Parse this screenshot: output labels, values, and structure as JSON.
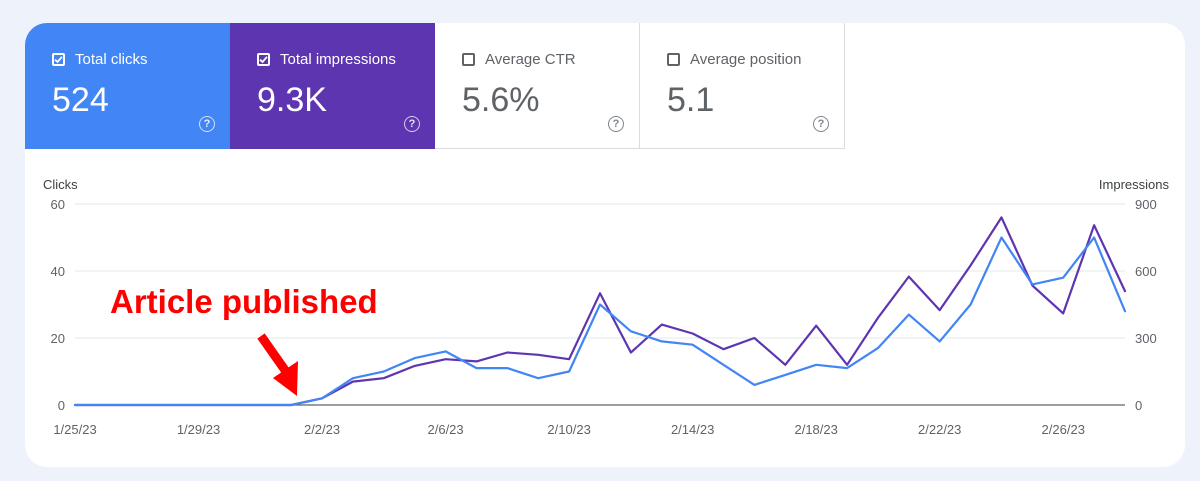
{
  "metrics": [
    {
      "label": "Total clicks",
      "value": "524",
      "checked": true,
      "color": "#4285f4",
      "help_icon": "?"
    },
    {
      "label": "Total impressions",
      "value": "9.3K",
      "checked": true,
      "color": "#5e35b1",
      "help_icon": "?"
    },
    {
      "label": "Average CTR",
      "value": "5.6%",
      "checked": false,
      "color": "#ffffff",
      "help_icon": "?"
    },
    {
      "label": "Average position",
      "value": "5.1",
      "checked": false,
      "color": "#ffffff",
      "help_icon": "?"
    }
  ],
  "annotation": {
    "text": "Article published",
    "color": "#ff0000"
  },
  "chart_data": {
    "type": "line",
    "left_axis": {
      "title": "Clicks",
      "ticks": [
        "0",
        "20",
        "40",
        "60"
      ],
      "range": [
        0,
        60
      ]
    },
    "right_axis": {
      "title": "Impressions",
      "ticks": [
        "0",
        "300",
        "600",
        "900"
      ],
      "range": [
        0,
        900
      ]
    },
    "x_ticks": [
      "1/25/23",
      "1/29/23",
      "2/2/23",
      "2/6/23",
      "2/10/23",
      "2/14/23",
      "2/18/23",
      "2/22/23",
      "2/26/23"
    ],
    "x": [
      "1/25/23",
      "1/26/23",
      "1/27/23",
      "1/28/23",
      "1/29/23",
      "1/30/23",
      "1/31/23",
      "2/1/23",
      "2/2/23",
      "2/3/23",
      "2/4/23",
      "2/5/23",
      "2/6/23",
      "2/7/23",
      "2/8/23",
      "2/9/23",
      "2/10/23",
      "2/11/23",
      "2/12/23",
      "2/13/23",
      "2/14/23",
      "2/15/23",
      "2/16/23",
      "2/17/23",
      "2/18/23",
      "2/19/23",
      "2/20/23",
      "2/21/23",
      "2/22/23",
      "2/23/23",
      "2/24/23",
      "2/25/23",
      "2/26/23",
      "2/27/23",
      "2/28/23"
    ],
    "grid": true,
    "series": [
      {
        "name": "Total clicks",
        "axis": "left",
        "color": "#4285f4",
        "values": [
          0,
          0,
          0,
          0,
          0,
          0,
          0,
          0,
          2,
          8,
          10,
          14,
          16,
          11,
          11,
          8,
          10,
          30,
          22,
          19,
          18,
          12,
          6,
          9,
          12,
          11,
          17,
          27,
          19,
          30,
          50,
          36,
          38,
          50,
          28
        ]
      },
      {
        "name": "Total impressions",
        "axis": "right",
        "color": "#5e35b1",
        "values": [
          0,
          0,
          0,
          0,
          0,
          0,
          0,
          0,
          30,
          105,
          120,
          175,
          205,
          195,
          235,
          225,
          205,
          500,
          235,
          360,
          320,
          250,
          300,
          180,
          355,
          180,
          390,
          575,
          425,
          625,
          840,
          535,
          410,
          805,
          510
        ]
      }
    ]
  }
}
